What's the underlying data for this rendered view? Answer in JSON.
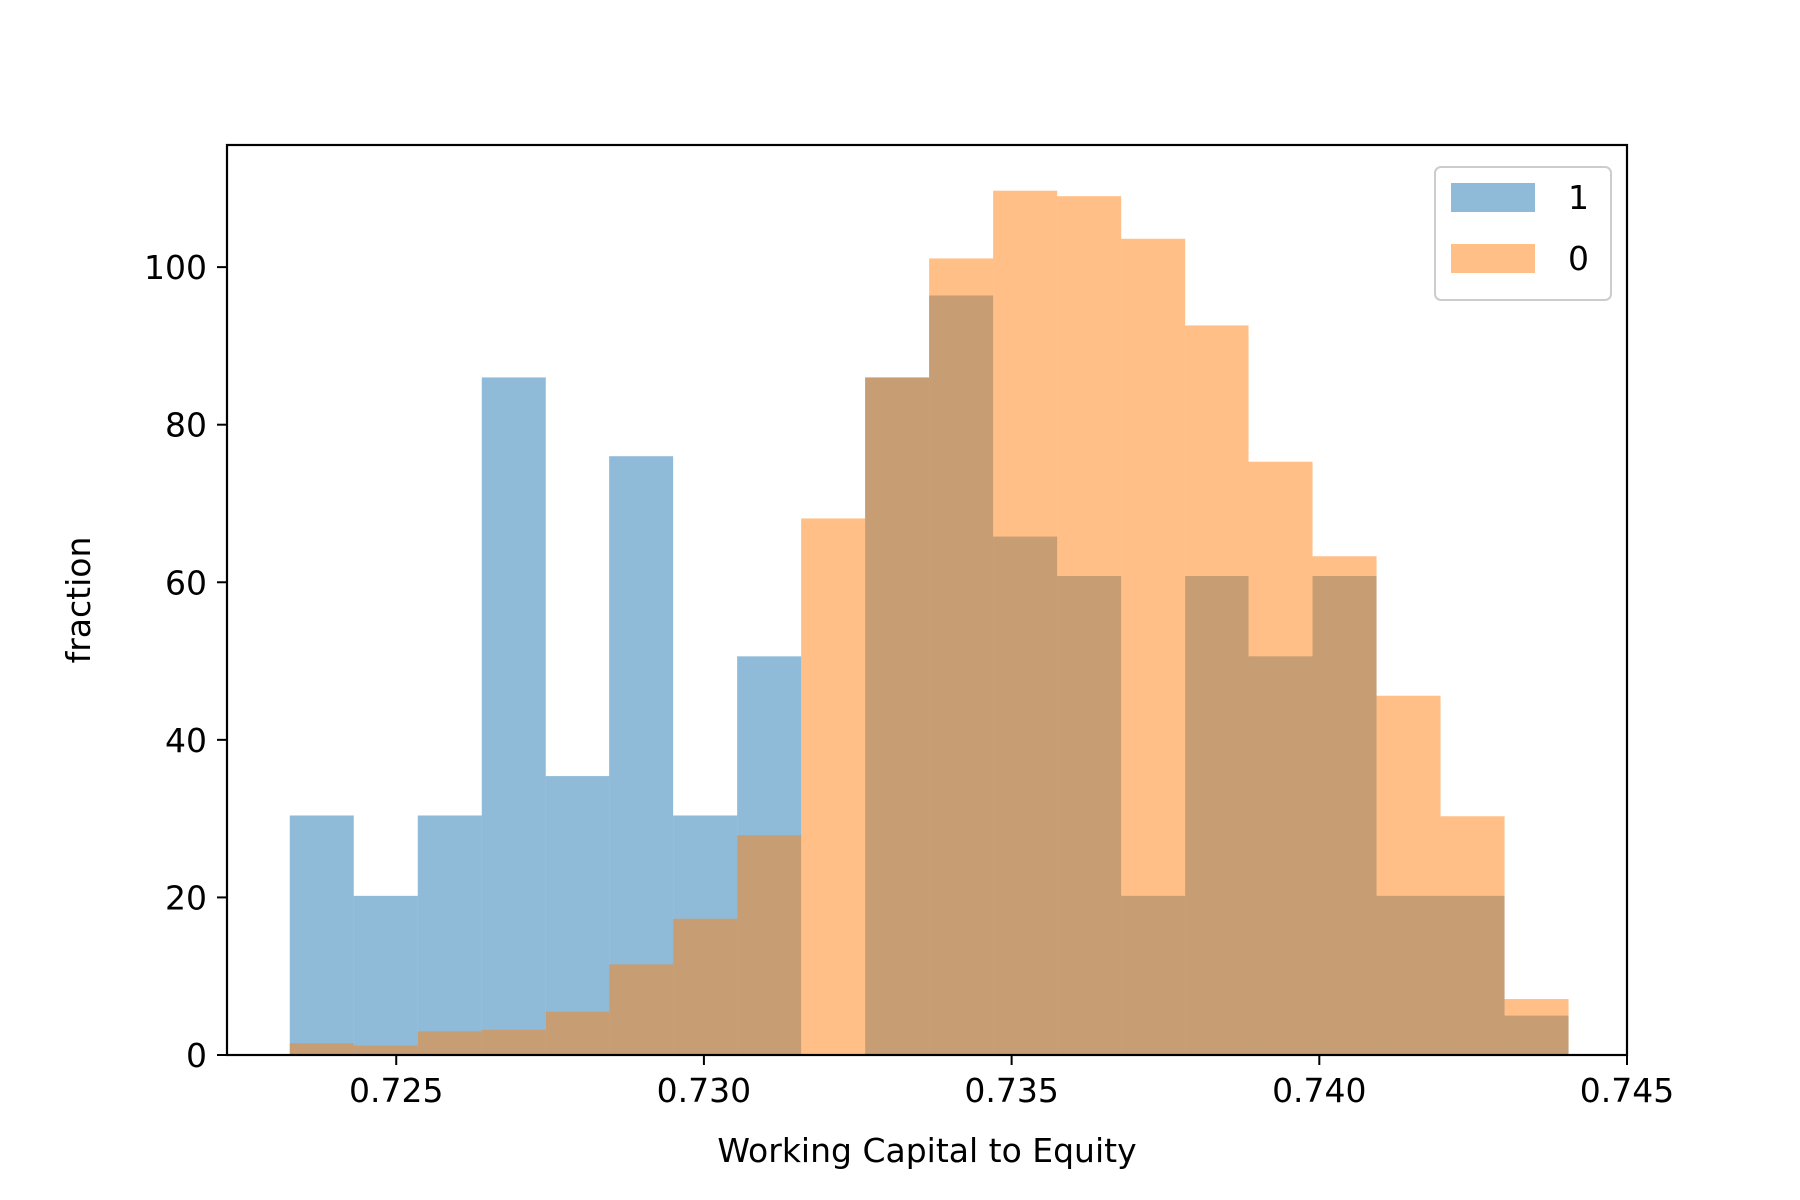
{
  "chart_data": {
    "type": "histogram",
    "title": "",
    "xlabel": "Working Capital to Equity",
    "ylabel": "fraction",
    "xlim": [
      0.72225,
      0.745
    ],
    "ylim": [
      0,
      115.5
    ],
    "xticks": [
      0.725,
      0.73,
      0.735,
      0.74,
      0.745
    ],
    "xtick_labels": [
      "0.725",
      "0.730",
      "0.735",
      "0.740",
      "0.745"
    ],
    "yticks": [
      0,
      20,
      40,
      60,
      80,
      100
    ],
    "ytick_labels": [
      "0",
      "20",
      "40",
      "60",
      "80",
      "100"
    ],
    "bin_edges": [
      0.72327,
      0.72431,
      0.72535,
      0.72639,
      0.72743,
      0.72846,
      0.7295,
      0.73054,
      0.73158,
      0.73262,
      0.73366,
      0.7347,
      0.73574,
      0.73678,
      0.73782,
      0.73885,
      0.73989,
      0.74093,
      0.74197,
      0.74301,
      0.74405
    ],
    "legend_position": "upper right",
    "grid": false,
    "series": [
      {
        "name": "1",
        "color": "#1f77b4",
        "opacity": 0.5,
        "values": [
          30.4,
          20.2,
          30.4,
          86.0,
          35.4,
          76.0,
          30.4,
          50.6,
          0,
          86.0,
          96.4,
          65.8,
          60.8,
          20.2,
          60.8,
          50.6,
          60.8,
          20.2,
          20.2,
          5.0
        ]
      },
      {
        "name": "0",
        "color": "#ff7f0e",
        "opacity": 0.5,
        "values": [
          1.5,
          1.2,
          3.0,
          3.2,
          5.5,
          11.5,
          17.3,
          27.9,
          68.1,
          86.0,
          101.1,
          109.7,
          109.0,
          103.6,
          92.6,
          75.3,
          63.3,
          45.6,
          30.3,
          7.1
        ]
      }
    ]
  }
}
